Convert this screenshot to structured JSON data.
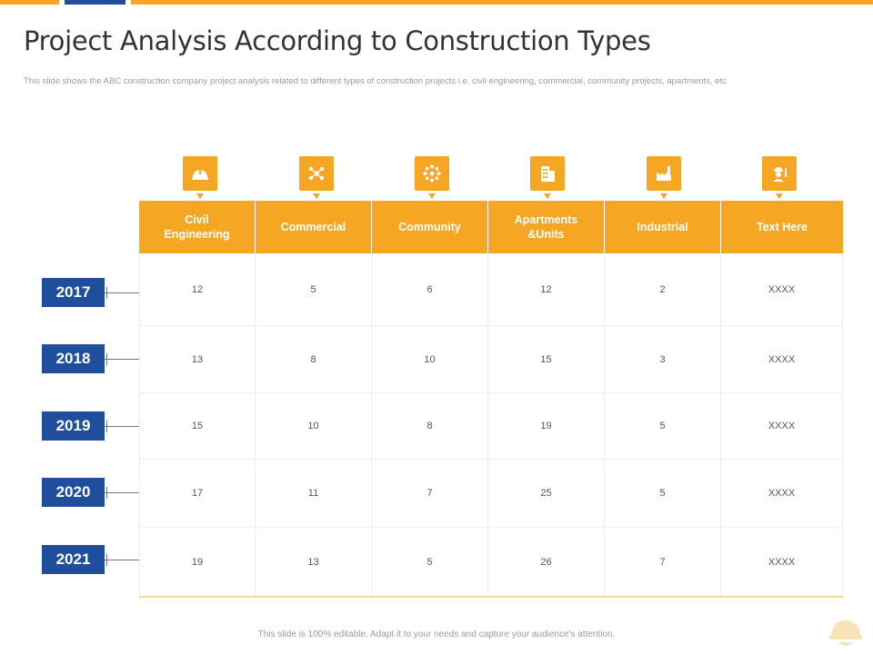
{
  "title": "Project Analysis According to Construction Types",
  "subtitle": "This slide shows the ABC construction company project analysis related to different types of construction projects i.e. civil engineering, commercial,  community  projects, apartments, etc",
  "columns": [
    {
      "label": "Civil\nEngineering",
      "icon": "hard-hat-icon"
    },
    {
      "label": "Commercial",
      "icon": "network-icon"
    },
    {
      "label": "Community",
      "icon": "people-circle-icon"
    },
    {
      "label": "Apartments\n&Units",
      "icon": "building-icon"
    },
    {
      "label": "Industrial",
      "icon": "factory-icon"
    },
    {
      "label": "Text Here",
      "icon": "worker-icon"
    }
  ],
  "rows": [
    {
      "year": "2017",
      "values": [
        "12",
        "5",
        "6",
        "12",
        "2",
        "XXXX"
      ]
    },
    {
      "year": "2018",
      "values": [
        "13",
        "8",
        "10",
        "15",
        "3",
        "XXXX"
      ]
    },
    {
      "year": "2019",
      "values": [
        "15",
        "10",
        "8",
        "19",
        "5",
        "XXXX"
      ]
    },
    {
      "year": "2020",
      "values": [
        "17",
        "11",
        "7",
        "25",
        "5",
        "XXXX"
      ]
    },
    {
      "year": "2021",
      "values": [
        "19",
        "13",
        "5",
        "26",
        "7",
        "XXXX"
      ]
    }
  ],
  "footer": "This slide is 100% editable.  Adapt it to your needs and capture your audience's attention.",
  "colors": {
    "accent": "#f5a623",
    "primary": "#1f4e9c"
  }
}
